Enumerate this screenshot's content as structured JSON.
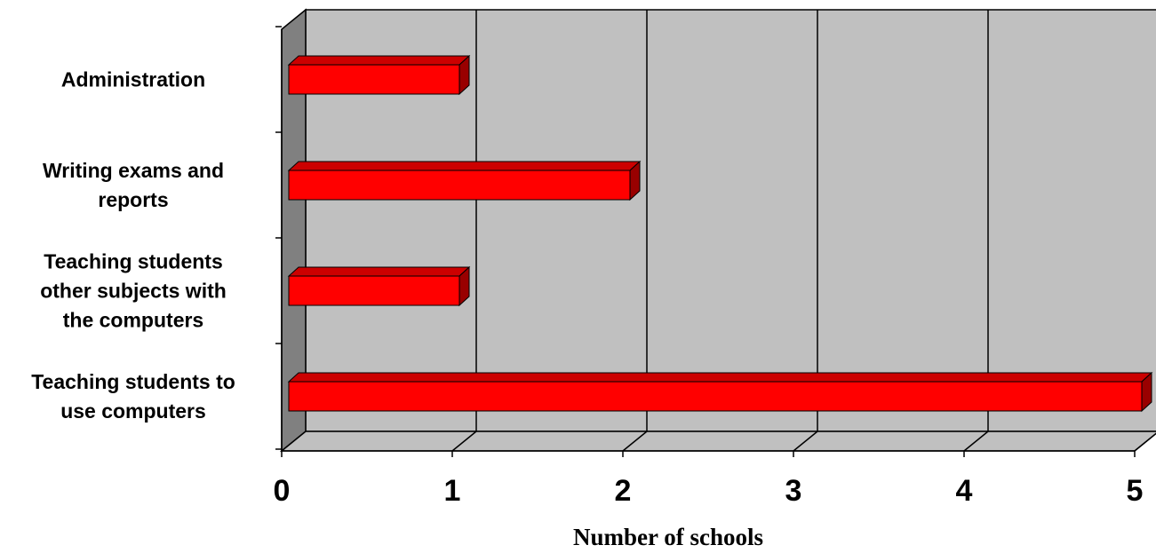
{
  "chart_data": {
    "type": "bar",
    "orientation": "horizontal",
    "style": "3d",
    "categories": [
      "Administration",
      "Writing exams and reports",
      "Teaching students other subjects with the computers",
      "Teaching students to use computers"
    ],
    "category_label_lines": [
      [
        "Administration"
      ],
      [
        "Writing exams and",
        "reports"
      ],
      [
        "Teaching students",
        "other subjects with",
        "the computers"
      ],
      [
        "Teaching students to",
        "use computers"
      ]
    ],
    "values": [
      1,
      2,
      1,
      5
    ],
    "xlabel": "Number of schools",
    "xlim": [
      0,
      5
    ],
    "xticks": [
      "0",
      "1",
      "2",
      "3",
      "4",
      "5"
    ],
    "grid": true,
    "legend": "none",
    "colors": {
      "bar_front": "#ff0000",
      "bar_top": "#cc0000",
      "bar_side": "#990000",
      "back_wall": "#c0c0c0",
      "side_wall": "#808080",
      "floor": "#c0c0c0"
    }
  }
}
